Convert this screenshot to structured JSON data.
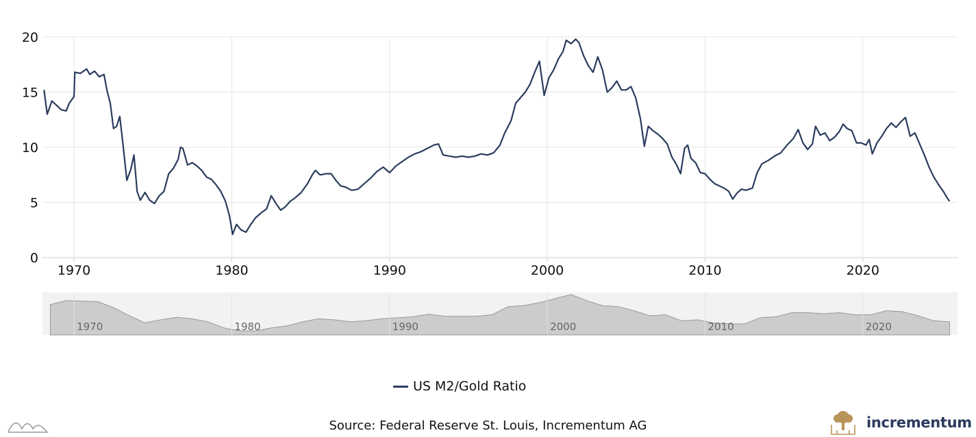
{
  "chart_data": {
    "type": "line",
    "series": [
      {
        "name": "US M2/Gold Ratio",
        "color": "#2b3b5e",
        "points": [
          [
            1968.1,
            15.2
          ],
          [
            1968.3,
            13.0
          ],
          [
            1968.6,
            14.2
          ],
          [
            1968.9,
            13.8
          ],
          [
            1969.2,
            13.4
          ],
          [
            1969.5,
            13.3
          ],
          [
            1969.7,
            14.0
          ],
          [
            1970.0,
            14.6
          ],
          [
            1970.05,
            16.8
          ],
          [
            1970.4,
            16.7
          ],
          [
            1970.8,
            17.1
          ],
          [
            1971.0,
            16.6
          ],
          [
            1971.3,
            16.9
          ],
          [
            1971.6,
            16.4
          ],
          [
            1971.9,
            16.6
          ],
          [
            1972.1,
            15.1
          ],
          [
            1972.3,
            14.0
          ],
          [
            1972.5,
            11.7
          ],
          [
            1972.7,
            11.9
          ],
          [
            1972.9,
            12.8
          ],
          [
            1973.1,
            10.3
          ],
          [
            1973.35,
            7.0
          ],
          [
            1973.6,
            8.0
          ],
          [
            1973.8,
            9.3
          ],
          [
            1974.0,
            6.0
          ],
          [
            1974.2,
            5.2
          ],
          [
            1974.5,
            5.9
          ],
          [
            1974.8,
            5.2
          ],
          [
            1975.1,
            4.9
          ],
          [
            1975.4,
            5.6
          ],
          [
            1975.7,
            6.0
          ],
          [
            1976.0,
            7.6
          ],
          [
            1976.3,
            8.1
          ],
          [
            1976.6,
            8.9
          ],
          [
            1976.75,
            10.0
          ],
          [
            1976.9,
            9.9
          ],
          [
            1977.2,
            8.4
          ],
          [
            1977.5,
            8.6
          ],
          [
            1977.8,
            8.3
          ],
          [
            1978.1,
            7.9
          ],
          [
            1978.4,
            7.3
          ],
          [
            1978.7,
            7.1
          ],
          [
            1979.0,
            6.6
          ],
          [
            1979.3,
            6.0
          ],
          [
            1979.6,
            5.1
          ],
          [
            1979.85,
            3.8
          ],
          [
            1980.05,
            2.1
          ],
          [
            1980.3,
            3.0
          ],
          [
            1980.6,
            2.5
          ],
          [
            1980.9,
            2.3
          ],
          [
            1981.2,
            3.0
          ],
          [
            1981.5,
            3.6
          ],
          [
            1981.9,
            4.1
          ],
          [
            1982.2,
            4.4
          ],
          [
            1982.5,
            5.6
          ],
          [
            1982.8,
            4.9
          ],
          [
            1983.1,
            4.3
          ],
          [
            1983.4,
            4.6
          ],
          [
            1983.7,
            5.1
          ],
          [
            1984.0,
            5.4
          ],
          [
            1984.4,
            5.9
          ],
          [
            1984.8,
            6.7
          ],
          [
            1985.1,
            7.5
          ],
          [
            1985.3,
            7.9
          ],
          [
            1985.6,
            7.5
          ],
          [
            1986.0,
            7.6
          ],
          [
            1986.3,
            7.6
          ],
          [
            1986.6,
            7.0
          ],
          [
            1986.9,
            6.5
          ],
          [
            1987.2,
            6.4
          ],
          [
            1987.6,
            6.1
          ],
          [
            1988.0,
            6.2
          ],
          [
            1988.4,
            6.7
          ],
          [
            1988.8,
            7.2
          ],
          [
            1989.2,
            7.8
          ],
          [
            1989.6,
            8.2
          ],
          [
            1990.0,
            7.7
          ],
          [
            1990.4,
            8.3
          ],
          [
            1990.8,
            8.7
          ],
          [
            1991.2,
            9.1
          ],
          [
            1991.6,
            9.4
          ],
          [
            1992.0,
            9.6
          ],
          [
            1992.4,
            9.9
          ],
          [
            1992.8,
            10.2
          ],
          [
            1993.1,
            10.3
          ],
          [
            1993.4,
            9.3
          ],
          [
            1993.8,
            9.2
          ],
          [
            1994.2,
            9.1
          ],
          [
            1994.6,
            9.2
          ],
          [
            1995.0,
            9.1
          ],
          [
            1995.4,
            9.2
          ],
          [
            1995.8,
            9.4
          ],
          [
            1996.2,
            9.3
          ],
          [
            1996.6,
            9.5
          ],
          [
            1997.0,
            10.2
          ],
          [
            1997.3,
            11.3
          ],
          [
            1997.7,
            12.4
          ],
          [
            1998.0,
            14.0
          ],
          [
            1998.3,
            14.5
          ],
          [
            1998.6,
            15.0
          ],
          [
            1998.9,
            15.7
          ],
          [
            1999.2,
            16.8
          ],
          [
            1999.5,
            17.8
          ],
          [
            1999.8,
            14.7
          ],
          [
            2000.1,
            16.3
          ],
          [
            2000.4,
            17.0
          ],
          [
            2000.7,
            18.0
          ],
          [
            2001.0,
            18.7
          ],
          [
            2001.2,
            19.7
          ],
          [
            2001.5,
            19.4
          ],
          [
            2001.8,
            19.8
          ],
          [
            2002.0,
            19.5
          ],
          [
            2002.3,
            18.3
          ],
          [
            2002.6,
            17.4
          ],
          [
            2002.9,
            16.8
          ],
          [
            2003.2,
            18.2
          ],
          [
            2003.5,
            17.0
          ],
          [
            2003.8,
            15.0
          ],
          [
            2004.1,
            15.4
          ],
          [
            2004.4,
            16.0
          ],
          [
            2004.7,
            15.2
          ],
          [
            2005.0,
            15.2
          ],
          [
            2005.3,
            15.5
          ],
          [
            2005.6,
            14.5
          ],
          [
            2005.9,
            12.6
          ],
          [
            2006.15,
            10.1
          ],
          [
            2006.4,
            11.9
          ],
          [
            2006.7,
            11.5
          ],
          [
            2007.0,
            11.2
          ],
          [
            2007.3,
            10.8
          ],
          [
            2007.6,
            10.3
          ],
          [
            2007.9,
            9.1
          ],
          [
            2008.2,
            8.4
          ],
          [
            2008.45,
            7.6
          ],
          [
            2008.7,
            9.9
          ],
          [
            2008.9,
            10.2
          ],
          [
            2009.1,
            9.0
          ],
          [
            2009.4,
            8.6
          ],
          [
            2009.7,
            7.7
          ],
          [
            2010.0,
            7.6
          ],
          [
            2010.3,
            7.1
          ],
          [
            2010.6,
            6.7
          ],
          [
            2010.9,
            6.5
          ],
          [
            2011.2,
            6.3
          ],
          [
            2011.5,
            6.0
          ],
          [
            2011.75,
            5.3
          ],
          [
            2012.0,
            5.8
          ],
          [
            2012.3,
            6.2
          ],
          [
            2012.6,
            6.1
          ],
          [
            2013.0,
            6.3
          ],
          [
            2013.3,
            7.7
          ],
          [
            2013.6,
            8.5
          ],
          [
            2014.0,
            8.8
          ],
          [
            2014.4,
            9.2
          ],
          [
            2014.8,
            9.5
          ],
          [
            2015.2,
            10.2
          ],
          [
            2015.6,
            10.8
          ],
          [
            2015.9,
            11.6
          ],
          [
            2016.2,
            10.4
          ],
          [
            2016.5,
            9.8
          ],
          [
            2016.8,
            10.3
          ],
          [
            2017.0,
            11.9
          ],
          [
            2017.3,
            11.1
          ],
          [
            2017.6,
            11.3
          ],
          [
            2017.9,
            10.6
          ],
          [
            2018.2,
            10.9
          ],
          [
            2018.5,
            11.4
          ],
          [
            2018.75,
            12.1
          ],
          [
            2019.0,
            11.7
          ],
          [
            2019.3,
            11.5
          ],
          [
            2019.6,
            10.4
          ],
          [
            2019.9,
            10.4
          ],
          [
            2020.2,
            10.2
          ],
          [
            2020.4,
            10.7
          ],
          [
            2020.6,
            9.4
          ],
          [
            2020.9,
            10.4
          ],
          [
            2021.2,
            11.0
          ],
          [
            2021.5,
            11.7
          ],
          [
            2021.8,
            12.2
          ],
          [
            2022.1,
            11.8
          ],
          [
            2022.4,
            12.3
          ],
          [
            2022.7,
            12.7
          ],
          [
            2023.0,
            11.0
          ],
          [
            2023.3,
            11.3
          ],
          [
            2023.6,
            10.3
          ],
          [
            2023.9,
            9.3
          ],
          [
            2024.2,
            8.2
          ],
          [
            2024.5,
            7.3
          ],
          [
            2024.8,
            6.6
          ],
          [
            2025.1,
            6.0
          ],
          [
            2025.35,
            5.4
          ],
          [
            2025.5,
            5.1
          ]
        ]
      }
    ],
    "navigator_points": [
      [
        1968.5,
        15.0
      ],
      [
        1969.5,
        17.0
      ],
      [
        1971.5,
        16.5
      ],
      [
        1972.5,
        13.5
      ],
      [
        1973.5,
        9.5
      ],
      [
        1974.5,
        6.0
      ],
      [
        1975.5,
        7.5
      ],
      [
        1976.5,
        8.7
      ],
      [
        1977.5,
        8.0
      ],
      [
        1978.5,
        6.5
      ],
      [
        1979.5,
        3.5
      ],
      [
        1980.5,
        2.0
      ],
      [
        1981.5,
        2.0
      ],
      [
        1982.5,
        3.5
      ],
      [
        1983.5,
        4.5
      ],
      [
        1984.5,
        6.5
      ],
      [
        1985.5,
        8.0
      ],
      [
        1986.5,
        7.5
      ],
      [
        1987.5,
        6.5
      ],
      [
        1988.5,
        7.0
      ],
      [
        1989.5,
        8.0
      ],
      [
        1990.5,
        8.5
      ],
      [
        1991.5,
        9.0
      ],
      [
        1992.5,
        10.3
      ],
      [
        1993.5,
        9.2
      ],
      [
        1995.5,
        9.2
      ],
      [
        1996.5,
        10.0
      ],
      [
        1997.5,
        14.0
      ],
      [
        1998.5,
        14.5
      ],
      [
        1999.5,
        16.0
      ],
      [
        2000.5,
        18.0
      ],
      [
        2001.5,
        20.0
      ],
      [
        2002.5,
        17.0
      ],
      [
        2003.5,
        14.5
      ],
      [
        2004.5,
        14.0
      ],
      [
        2005.5,
        12.0
      ],
      [
        2006.5,
        9.5
      ],
      [
        2007.5,
        10.0
      ],
      [
        2008.5,
        7.0
      ],
      [
        2009.5,
        7.5
      ],
      [
        2010.5,
        6.0
      ],
      [
        2011.5,
        5.5
      ],
      [
        2012.5,
        5.5
      ],
      [
        2013.5,
        8.5
      ],
      [
        2014.5,
        9.0
      ],
      [
        2015.5,
        11.0
      ],
      [
        2016.5,
        11.0
      ],
      [
        2017.5,
        10.5
      ],
      [
        2018.5,
        11.0
      ],
      [
        2019.5,
        10.0
      ],
      [
        2020.5,
        10.0
      ],
      [
        2021.5,
        12.0
      ],
      [
        2022.5,
        11.5
      ],
      [
        2023.5,
        9.5
      ],
      [
        2024.5,
        7.0
      ],
      [
        2025.5,
        6.5
      ]
    ],
    "title": "",
    "xlabel": "",
    "ylabel": "",
    "xlim": [
      1968,
      2026
    ],
    "ylim": [
      0,
      20
    ],
    "yticks": [
      0,
      5,
      10,
      15,
      20
    ],
    "xticks": [
      1970,
      1980,
      1990,
      2000,
      2010,
      2020
    ],
    "grid": true,
    "legend_position": "bottom-center"
  },
  "legend": {
    "label": "US M2/Gold Ratio"
  },
  "source": "Source: Federal Reserve St. Louis, Incrementum AG",
  "brand": {
    "name": "incrementum",
    "color": "#2b3b5e",
    "logo_color": "#b8945a"
  },
  "colors": {
    "line": "#2b3b5e",
    "grid": "#e6e6e6",
    "navigator_fill": "#cccccc",
    "navigator_bg": "#f2f2f2"
  }
}
